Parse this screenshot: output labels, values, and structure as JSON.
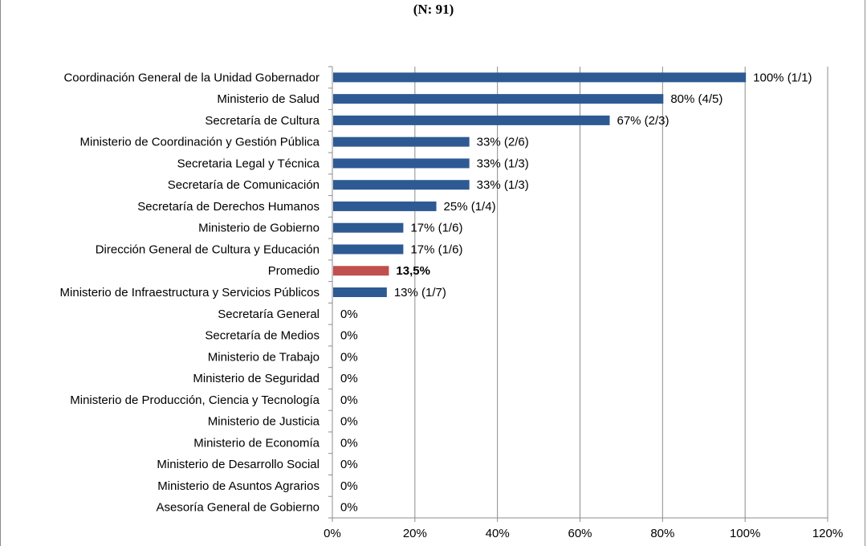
{
  "subtitle": "(N: 91)",
  "colors": {
    "bar": "#2e5a94",
    "highlight": "#c0504d",
    "grid": "#8c8c8c",
    "axis": "#8c8c8c"
  },
  "chart_data": {
    "type": "bar",
    "orientation": "horizontal",
    "title": "",
    "subtitle": "(N: 91)",
    "xlim": [
      0,
      120
    ],
    "xticks": [
      "0%",
      "20%",
      "40%",
      "60%",
      "80%",
      "100%",
      "120%"
    ],
    "grid": "vertical",
    "categories": [
      "Coordinación General de la Unidad Gobernador",
      "Ministerio de Salud",
      "Secretaría de Cultura",
      "Ministerio de Coordinación y Gestión Pública",
      "Secretaria Legal y Técnica",
      "Secretaría de Comunicación",
      "Secretaría de Derechos Humanos",
      "Ministerio de Gobierno",
      "Dirección General de Cultura y Educación",
      "Promedio",
      "Ministerio de Infraestructura y Servicios Públicos",
      "Secretaría General",
      "Secretaría de Medios",
      "Ministerio de Trabajo",
      "Ministerio de Seguridad",
      "Ministerio de Producción, Ciencia y Tecnología",
      "Ministerio de Justicia",
      "Ministerio de Economía",
      "Ministerio de Desarrollo Social",
      "Ministerio de Asuntos Agrarios",
      "Asesoría General de Gobierno"
    ],
    "values": [
      100,
      80,
      67,
      33,
      33,
      33,
      25,
      17,
      17,
      13.5,
      13,
      0,
      0,
      0,
      0,
      0,
      0,
      0,
      0,
      0,
      0
    ],
    "labels": [
      "100% (1/1)",
      "80% (4/5)",
      "67% (2/3)",
      "33% (2/6)",
      "33% (1/3)",
      "33% (1/3)",
      "25% (1/4)",
      "17% (1/6)",
      "17% (1/6)",
      "13,5%",
      "13% (1/7)",
      "0%",
      "0%",
      "0%",
      "0%",
      "0%",
      "0%",
      "0%",
      "0%",
      "0%",
      "0%"
    ],
    "highlight_index": 9
  }
}
